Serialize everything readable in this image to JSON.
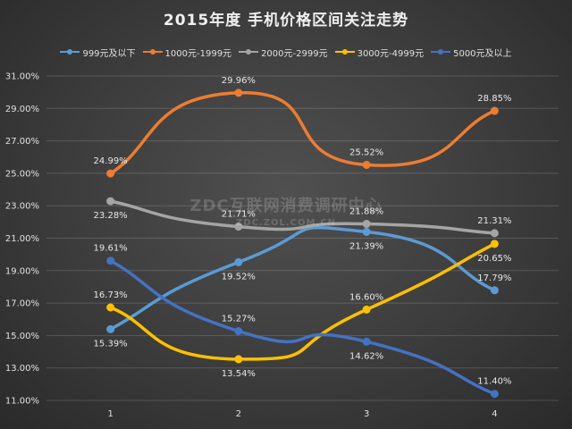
{
  "chart_data": {
    "type": "line",
    "title": "2015年度 手机价格区间关注走势",
    "categories": [
      "1",
      "2",
      "3",
      "4"
    ],
    "y_tick_labels": [
      "31.00%",
      "29.00%",
      "27.00%",
      "25.00%",
      "23.00%",
      "21.00%",
      "19.00%",
      "17.00%",
      "15.00%",
      "13.00%",
      "11.00%"
    ],
    "ylim": [
      11,
      31
    ],
    "ystep": 2,
    "grid": true,
    "legend_position": "top",
    "smooth": true,
    "series": [
      {
        "name": "999元及以下",
        "color": "#5b9bd5",
        "values": [
          15.39,
          19.52,
          21.39,
          17.79
        ],
        "labels": [
          "15.39%",
          "19.52%",
          "21.39%",
          "17.79%"
        ]
      },
      {
        "name": "1000元-1999元",
        "color": "#ed7d31",
        "values": [
          24.99,
          29.96,
          25.52,
          28.85
        ],
        "labels": [
          "24.99%",
          "29.96%",
          "25.52%",
          "28.85%"
        ]
      },
      {
        "name": "2000元-2999元",
        "color": "#a5a5a5",
        "values": [
          23.28,
          21.71,
          21.88,
          21.31
        ],
        "labels": [
          "23.28%",
          "21.71%",
          "21.88%",
          "21.31%"
        ]
      },
      {
        "name": "3000元-4999元",
        "color": "#ffc000",
        "values": [
          16.73,
          13.54,
          16.6,
          20.65
        ],
        "labels": [
          "16.73%",
          "13.54%",
          "16.60%",
          "20.65%"
        ]
      },
      {
        "name": "5000元及以上",
        "color": "#4472c4",
        "values": [
          19.61,
          15.27,
          14.62,
          11.4
        ],
        "labels": [
          "19.61%",
          "15.27%",
          "14.62%",
          "11.40%"
        ]
      }
    ]
  },
  "watermark": {
    "line1": "ZDC互联网消费调研中心",
    "line2": "ZDC.ZOL.COM.CN"
  }
}
